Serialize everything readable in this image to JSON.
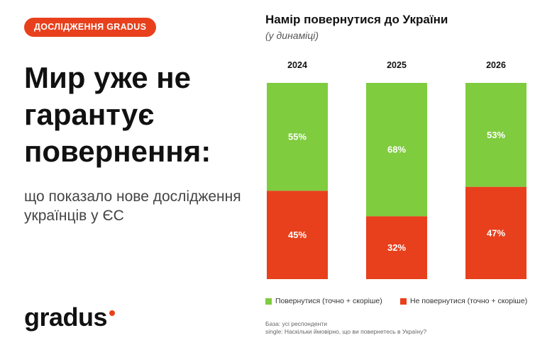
{
  "badge": "ДОСЛІДЖЕННЯ GRADUS",
  "headline": "Мир уже не гарантує повернення:",
  "subheadline": "що показало нове дослідження українців у ЄС",
  "logo": "gradus",
  "colors": {
    "accent": "#e8401c",
    "return": "#7fcc3f",
    "not_return": "#e8401c"
  },
  "chart_data": {
    "type": "bar",
    "stacked": true,
    "normalized_percent": true,
    "title": "Намір повернутися до України",
    "subtitle": "(у динаміці)",
    "categories": [
      "2024",
      "2025",
      "2026"
    ],
    "series": [
      {
        "name": "Повернутися (точно + скоріше)",
        "values": [
          55,
          68,
          53
        ],
        "labels": [
          "55%",
          "68%",
          "53%"
        ]
      },
      {
        "name": "Не повернутися (точно + скоріше)",
        "values": [
          45,
          32,
          47
        ],
        "labels": [
          "45%",
          "32%",
          "47%"
        ]
      }
    ],
    "ylim": [
      0,
      100
    ],
    "grid": false,
    "legend": "bottom"
  },
  "footnote": {
    "base": "База: усі респонденти",
    "question": "single: Наскільки ймовірно, що ви повернетесь в Україну?"
  }
}
